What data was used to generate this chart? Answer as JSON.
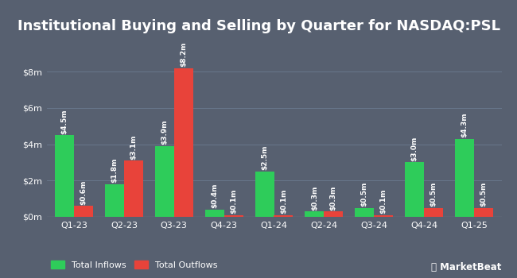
{
  "title": "Institutional Buying and Selling by Quarter for NASDAQ:PSL",
  "quarters": [
    "Q1-23",
    "Q2-23",
    "Q3-23",
    "Q4-23",
    "Q1-24",
    "Q2-24",
    "Q3-24",
    "Q4-24",
    "Q1-25"
  ],
  "inflows": [
    4.5,
    1.8,
    3.9,
    0.4,
    2.5,
    0.3,
    0.5,
    3.0,
    4.3
  ],
  "outflows": [
    0.6,
    3.1,
    8.2,
    0.1,
    0.1,
    0.3,
    0.1,
    0.5,
    0.5
  ],
  "inflow_labels": [
    "$4.5m",
    "$1.8m",
    "$3.9m",
    "$0.4m",
    "$2.5m",
    "$0.3m",
    "$0.5m",
    "$3.0m",
    "$4.3m"
  ],
  "outflow_labels": [
    "$0.6m",
    "$3.1m",
    "$8.2m",
    "$0.1m",
    "$0.1m",
    "$0.3m",
    "$0.1m",
    "$0.5m",
    "$0.5m"
  ],
  "inflow_color": "#2ecc5a",
  "outflow_color": "#e8433a",
  "background_color": "#576070",
  "plot_bg_color": "#576070",
  "grid_color": "#6b7a90",
  "text_color": "#ffffff",
  "ylim": [
    0,
    9.8
  ],
  "yticks": [
    0,
    2,
    4,
    6,
    8
  ],
  "ytick_labels": [
    "$0m",
    "$2m",
    "$4m",
    "$6m",
    "$8m"
  ],
  "bar_width": 0.38,
  "legend_inflow": "Total Inflows",
  "legend_outflow": "Total Outflows",
  "title_fontsize": 13,
  "label_fontsize": 6.5,
  "tick_fontsize": 8,
  "legend_fontsize": 8
}
